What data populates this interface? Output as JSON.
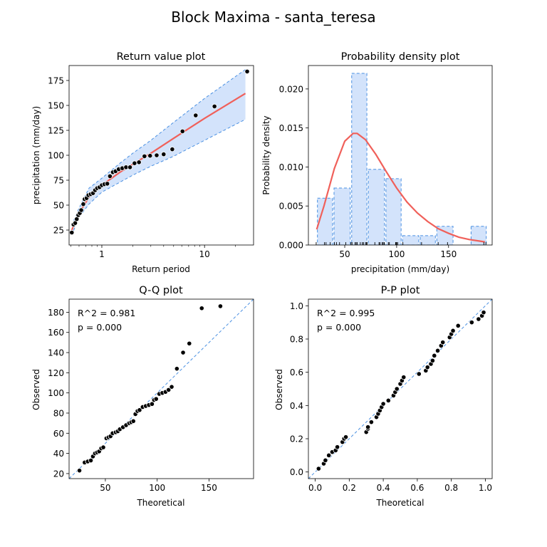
{
  "figure": {
    "suptitle": "Block Maxima - santa_teresa"
  },
  "colors": {
    "fit": "#f0605a",
    "band_fill": "#d3e3fb",
    "band_edge": "#4a90e2",
    "point": "#000000",
    "hist_fill": "#d3e3fb",
    "hist_edge": "#4a90e2",
    "ref_line": "#4a90e2"
  },
  "chart_data": [
    {
      "id": "return_value",
      "type": "scatter",
      "title": "Return value plot",
      "xlabel": "Return period",
      "ylabel": "precipitation (mm/day)",
      "xscale": "log",
      "xlim": [
        0.48,
        30
      ],
      "ylim": [
        10,
        190
      ],
      "xticks": [
        1,
        10
      ],
      "xtick_labels": [
        "1",
        "10"
      ],
      "yticks": [
        25,
        50,
        75,
        100,
        125,
        150,
        175
      ],
      "points": [
        [
          0.51,
          22.5
        ],
        [
          0.53,
          30.5
        ],
        [
          0.55,
          32
        ],
        [
          0.57,
          36
        ],
        [
          0.59,
          40
        ],
        [
          0.61,
          42
        ],
        [
          0.63,
          45
        ],
        [
          0.66,
          51
        ],
        [
          0.68,
          56
        ],
        [
          0.71,
          57
        ],
        [
          0.74,
          60
        ],
        [
          0.78,
          61
        ],
        [
          0.82,
          62
        ],
        [
          0.86,
          65
        ],
        [
          0.9,
          67
        ],
        [
          0.95,
          68
        ],
        [
          1.0,
          70
        ],
        [
          1.06,
          71
        ],
        [
          1.13,
          71.5
        ],
        [
          1.2,
          79
        ],
        [
          1.28,
          83
        ],
        [
          1.36,
          84
        ],
        [
          1.46,
          86
        ],
        [
          1.58,
          87
        ],
        [
          1.72,
          88
        ],
        [
          1.88,
          88
        ],
        [
          2.08,
          92
        ],
        [
          2.3,
          93
        ],
        [
          2.6,
          99
        ],
        [
          2.95,
          99.5
        ],
        [
          3.42,
          100
        ],
        [
          4.0,
          101
        ],
        [
          4.85,
          106
        ],
        [
          6.1,
          124
        ],
        [
          8.2,
          140
        ],
        [
          12.5,
          149
        ],
        [
          26.0,
          184
        ]
      ],
      "fit_curve": [
        [
          0.51,
          25
        ],
        [
          0.6,
          42
        ],
        [
          0.75,
          58
        ],
        [
          1.0,
          70
        ],
        [
          1.5,
          83
        ],
        [
          2,
          91
        ],
        [
          3,
          102
        ],
        [
          5,
          117
        ],
        [
          10,
          137
        ],
        [
          25,
          162
        ]
      ],
      "band_upper": [
        [
          0.51,
          30
        ],
        [
          0.6,
          47
        ],
        [
          0.75,
          67
        ],
        [
          1.0,
          77
        ],
        [
          1.5,
          92
        ],
        [
          2,
          102
        ],
        [
          3,
          115
        ],
        [
          5,
          133
        ],
        [
          10,
          157
        ],
        [
          25,
          186
        ]
      ],
      "band_lower": [
        [
          0.51,
          20
        ],
        [
          0.6,
          38
        ],
        [
          0.75,
          51
        ],
        [
          1.0,
          63
        ],
        [
          1.5,
          73
        ],
        [
          2,
          80
        ],
        [
          3,
          89
        ],
        [
          5,
          99
        ],
        [
          10,
          115
        ],
        [
          25,
          136
        ]
      ]
    },
    {
      "id": "pdf",
      "type": "bar",
      "title": "Probability density plot",
      "xlabel": "precipitation (mm/day)",
      "ylabel": "Probability density",
      "xlim": [
        15,
        192
      ],
      "ylim": [
        0,
        0.023
      ],
      "xticks": [
        50,
        100,
        150
      ],
      "yticks": [
        0.0,
        0.005,
        0.01,
        0.015,
        0.02
      ],
      "ytick_labels": [
        "0.000",
        "0.005",
        "0.010",
        "0.015",
        "0.020"
      ],
      "bins": [
        {
          "x0": 23,
          "x1": 39,
          "value": 0.006
        },
        {
          "x0": 39,
          "x1": 56,
          "value": 0.0073
        },
        {
          "x0": 56,
          "x1": 72,
          "value": 0.022
        },
        {
          "x0": 72,
          "x1": 89,
          "value": 0.0097
        },
        {
          "x0": 89,
          "x1": 105,
          "value": 0.0085
        },
        {
          "x0": 105,
          "x1": 122,
          "value": 0.0012
        },
        {
          "x0": 122,
          "x1": 138,
          "value": 0.0012
        },
        {
          "x0": 138,
          "x1": 155,
          "value": 0.0024
        },
        {
          "x0": 155,
          "x1": 171,
          "value": 0.0
        },
        {
          "x0": 171,
          "x1": 187,
          "value": 0.0024
        }
      ],
      "pdf_curve": [
        [
          23,
          0.002
        ],
        [
          30,
          0.005
        ],
        [
          40,
          0.0098
        ],
        [
          50,
          0.0133
        ],
        [
          58,
          0.0143
        ],
        [
          62,
          0.0143
        ],
        [
          70,
          0.0135
        ],
        [
          80,
          0.0116
        ],
        [
          90,
          0.0094
        ],
        [
          100,
          0.0073
        ],
        [
          110,
          0.0055
        ],
        [
          120,
          0.0041
        ],
        [
          130,
          0.003
        ],
        [
          140,
          0.0021
        ],
        [
          150,
          0.0015
        ],
        [
          160,
          0.001
        ],
        [
          170,
          0.0007
        ],
        [
          180,
          0.0005
        ],
        [
          185,
          0.0004
        ]
      ],
      "rug": [
        22.5,
        30.5,
        32,
        36,
        40,
        42,
        45,
        51,
        56,
        57,
        60,
        61,
        62,
        65,
        67,
        68,
        70,
        71,
        71.5,
        79,
        83,
        84,
        86,
        87,
        88,
        88,
        92,
        93,
        99,
        99.5,
        100,
        101,
        106,
        124,
        140,
        149,
        184,
        186
      ]
    },
    {
      "id": "qq",
      "type": "scatter",
      "title": "Q-Q plot",
      "xlabel": "Theoretical",
      "ylabel": "Observed",
      "xlim": [
        15,
        193
      ],
      "ylim": [
        15,
        193
      ],
      "xticks": [
        50,
        100,
        150
      ],
      "yticks": [
        20,
        40,
        60,
        80,
        100,
        120,
        140,
        160,
        180
      ],
      "annotation": [
        "R^2 = 0.981",
        "p = 0.000"
      ],
      "points": [
        [
          25,
          23
        ],
        [
          30,
          31
        ],
        [
          33,
          32
        ],
        [
          36,
          33
        ],
        [
          38,
          37
        ],
        [
          40,
          40
        ],
        [
          42,
          41
        ],
        [
          44,
          42
        ],
        [
          46,
          45
        ],
        [
          48,
          46
        ],
        [
          51,
          55
        ],
        [
          53,
          56
        ],
        [
          55,
          57
        ],
        [
          57,
          60
        ],
        [
          60,
          61
        ],
        [
          62,
          62
        ],
        [
          64,
          64
        ],
        [
          67,
          66
        ],
        [
          70,
          68
        ],
        [
          73,
          70
        ],
        [
          75,
          71
        ],
        [
          77,
          72
        ],
        [
          79,
          79
        ],
        [
          81,
          82
        ],
        [
          83,
          83
        ],
        [
          86,
          86
        ],
        [
          89,
          87
        ],
        [
          92,
          88
        ],
        [
          95,
          89
        ],
        [
          97,
          93
        ],
        [
          99,
          94
        ],
        [
          102,
          99
        ],
        [
          105,
          100
        ],
        [
          108,
          101
        ],
        [
          111,
          103
        ],
        [
          114,
          106
        ],
        [
          119,
          124
        ],
        [
          125,
          140
        ],
        [
          131,
          149
        ],
        [
          143,
          184
        ],
        [
          161,
          186
        ]
      ]
    },
    {
      "id": "pp",
      "type": "scatter",
      "title": "P-P plot",
      "xlabel": "Theoretical",
      "ylabel": "Observed",
      "xlim": [
        -0.04,
        1.04
      ],
      "ylim": [
        -0.04,
        1.04
      ],
      "xticks": [
        0.0,
        0.2,
        0.4,
        0.6,
        0.8,
        1.0
      ],
      "xtick_labels": [
        "0.0",
        "0.2",
        "0.4",
        "0.6",
        "0.8",
        "1.0"
      ],
      "yticks": [
        0.0,
        0.2,
        0.4,
        0.6,
        0.8,
        1.0
      ],
      "ytick_labels": [
        "0.0",
        "0.2",
        "0.4",
        "0.6",
        "0.8",
        "1.0"
      ],
      "annotation": [
        "R^2 = 0.995",
        "p = 0.000"
      ],
      "points": [
        [
          0.02,
          0.02
        ],
        [
          0.05,
          0.05
        ],
        [
          0.06,
          0.07
        ],
        [
          0.08,
          0.1
        ],
        [
          0.1,
          0.12
        ],
        [
          0.12,
          0.13
        ],
        [
          0.13,
          0.15
        ],
        [
          0.16,
          0.18
        ],
        [
          0.17,
          0.2
        ],
        [
          0.18,
          0.21
        ],
        [
          0.3,
          0.24
        ],
        [
          0.31,
          0.26
        ],
        [
          0.31,
          0.27
        ],
        [
          0.33,
          0.3
        ],
        [
          0.36,
          0.33
        ],
        [
          0.37,
          0.35
        ],
        [
          0.38,
          0.37
        ],
        [
          0.39,
          0.39
        ],
        [
          0.4,
          0.41
        ],
        [
          0.43,
          0.43
        ],
        [
          0.46,
          0.46
        ],
        [
          0.47,
          0.48
        ],
        [
          0.48,
          0.5
        ],
        [
          0.5,
          0.53
        ],
        [
          0.51,
          0.55
        ],
        [
          0.52,
          0.57
        ],
        [
          0.61,
          0.59
        ],
        [
          0.65,
          0.61
        ],
        [
          0.66,
          0.63
        ],
        [
          0.68,
          0.65
        ],
        [
          0.69,
          0.67
        ],
        [
          0.7,
          0.7
        ],
        [
          0.72,
          0.73
        ],
        [
          0.74,
          0.76
        ],
        [
          0.75,
          0.78
        ],
        [
          0.79,
          0.81
        ],
        [
          0.8,
          0.83
        ],
        [
          0.81,
          0.85
        ],
        [
          0.84,
          0.88
        ],
        [
          0.92,
          0.9
        ],
        [
          0.96,
          0.92
        ],
        [
          0.98,
          0.94
        ],
        [
          0.99,
          0.96
        ]
      ]
    }
  ]
}
